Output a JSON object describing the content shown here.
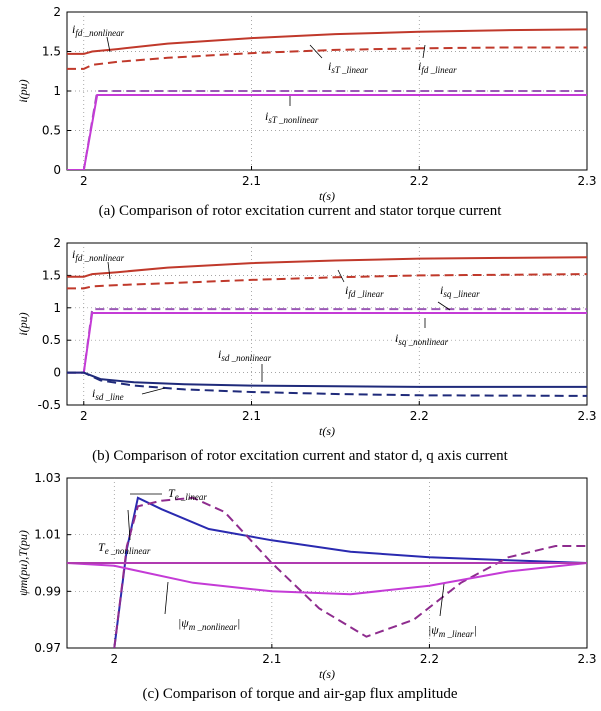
{
  "chart_data": [
    {
      "type": "line",
      "caption": "(a) Comparison of rotor excitation current and stator torque current",
      "xlabel": "t(s)",
      "ylabel": "i(pu)",
      "xlim": [
        1.99,
        2.3
      ],
      "ylim": [
        0,
        2
      ],
      "xticks": [
        "2",
        "2.1",
        "2.2",
        "2.3"
      ],
      "yticks": [
        "0",
        "0.5",
        "1",
        "1.5",
        "2"
      ],
      "grid": "dotted",
      "series": [
        {
          "name": "i_fd_nonlinear",
          "style": "solid",
          "color": "#c0392b",
          "points": [
            [
              1.99,
              1.47
            ],
            [
              2.0,
              1.47
            ],
            [
              2.005,
              1.5
            ],
            [
              2.02,
              1.53
            ],
            [
              2.05,
              1.6
            ],
            [
              2.1,
              1.67
            ],
            [
              2.15,
              1.72
            ],
            [
              2.2,
              1.75
            ],
            [
              2.25,
              1.77
            ],
            [
              2.3,
              1.78
            ]
          ]
        },
        {
          "name": "i_fd_linear",
          "style": "dashed",
          "color": "#c0392b",
          "points": [
            [
              1.99,
              1.28
            ],
            [
              2.0,
              1.28
            ],
            [
              2.005,
              1.33
            ],
            [
              2.02,
              1.37
            ],
            [
              2.05,
              1.42
            ],
            [
              2.1,
              1.48
            ],
            [
              2.15,
              1.52
            ],
            [
              2.2,
              1.54
            ],
            [
              2.25,
              1.55
            ],
            [
              2.3,
              1.55
            ]
          ]
        },
        {
          "name": "i_sT_linear",
          "style": "dashed",
          "color": "#9b59b6",
          "points": [
            [
              1.99,
              0.0
            ],
            [
              2.0,
              0.0
            ],
            [
              2.008,
              1.0
            ],
            [
              2.3,
              1.0
            ]
          ]
        },
        {
          "name": "i_sT_nonlinear",
          "style": "solid",
          "color": "#c43bd6",
          "points": [
            [
              1.99,
              0.0
            ],
            [
              2.0,
              0.0
            ],
            [
              2.008,
              0.95
            ],
            [
              2.3,
              0.95
            ]
          ]
        }
      ],
      "annotations": [
        {
          "main": "i",
          "sub": "fd _nonlinear"
        },
        {
          "main": "i",
          "sub": "sT _linear"
        },
        {
          "main": "i",
          "sub": "fd _linear"
        },
        {
          "main": "i",
          "sub": "sT _nonlinear"
        }
      ]
    },
    {
      "type": "line",
      "caption": "(b) Comparison of rotor excitation current and stator d, q axis current",
      "xlabel": "t(s)",
      "ylabel": "i(pu)",
      "xlim": [
        1.99,
        2.3
      ],
      "ylim": [
        -0.5,
        2
      ],
      "xticks": [
        "2",
        "2.1",
        "2.2",
        "2.3"
      ],
      "yticks": [
        "-0.5",
        "0",
        "0.5",
        "1",
        "1.5",
        "2"
      ],
      "grid": "dotted",
      "series": [
        {
          "name": "i_fd_nonlinear",
          "style": "solid",
          "color": "#c0392b",
          "points": [
            [
              1.99,
              1.48
            ],
            [
              2.0,
              1.48
            ],
            [
              2.005,
              1.52
            ],
            [
              2.02,
              1.55
            ],
            [
              2.05,
              1.62
            ],
            [
              2.1,
              1.69
            ],
            [
              2.15,
              1.73
            ],
            [
              2.2,
              1.76
            ],
            [
              2.25,
              1.77
            ],
            [
              2.3,
              1.78
            ]
          ]
        },
        {
          "name": "i_fd_linear",
          "style": "dashed",
          "color": "#c0392b",
          "points": [
            [
              1.99,
              1.3
            ],
            [
              2.0,
              1.3
            ],
            [
              2.005,
              1.33
            ],
            [
              2.02,
              1.35
            ],
            [
              2.05,
              1.38
            ],
            [
              2.1,
              1.43
            ],
            [
              2.15,
              1.47
            ],
            [
              2.2,
              1.5
            ],
            [
              2.25,
              1.51
            ],
            [
              2.3,
              1.52
            ]
          ]
        },
        {
          "name": "i_sq_linear",
          "style": "dashed",
          "color": "#9b59b6",
          "points": [
            [
              1.99,
              0.0
            ],
            [
              2.0,
              0.0
            ],
            [
              2.005,
              0.98
            ],
            [
              2.3,
              0.98
            ]
          ]
        },
        {
          "name": "i_sq_nonlinear",
          "style": "solid",
          "color": "#c43bd6",
          "points": [
            [
              1.99,
              0.0
            ],
            [
              2.0,
              0.0
            ],
            [
              2.005,
              0.92
            ],
            [
              2.3,
              0.92
            ]
          ]
        },
        {
          "name": "i_sd_nonlinear",
          "style": "solid",
          "color": "#1f2a7a",
          "points": [
            [
              1.99,
              0.0
            ],
            [
              2.0,
              0.0
            ],
            [
              2.01,
              -0.1
            ],
            [
              2.03,
              -0.15
            ],
            [
              2.06,
              -0.18
            ],
            [
              2.1,
              -0.2
            ],
            [
              2.15,
              -0.21
            ],
            [
              2.2,
              -0.22
            ],
            [
              2.3,
              -0.22
            ]
          ]
        },
        {
          "name": "i_sd_line",
          "style": "dashed",
          "color": "#1f2a7a",
          "points": [
            [
              1.99,
              0.0
            ],
            [
              2.0,
              0.0
            ],
            [
              2.01,
              -0.12
            ],
            [
              2.03,
              -0.2
            ],
            [
              2.06,
              -0.26
            ],
            [
              2.1,
              -0.3
            ],
            [
              2.15,
              -0.33
            ],
            [
              2.2,
              -0.35
            ],
            [
              2.3,
              -0.36
            ]
          ]
        }
      ],
      "annotations": [
        {
          "main": "i",
          "sub": "fd _nonlinear"
        },
        {
          "main": "i",
          "sub": "fd _linear"
        },
        {
          "main": "i",
          "sub": "sq _linear"
        },
        {
          "main": "i",
          "sub": "sq _nonlinear"
        },
        {
          "main": "i",
          "sub": "sd _nonlinear"
        },
        {
          "main": "i",
          "sub": "sd _line"
        }
      ]
    },
    {
      "type": "line",
      "caption": "(c) Comparison of torque and air-gap flux amplitude",
      "xlabel": "t(s)",
      "ylabel": "ψm(pu),T(pu)",
      "xlim": [
        1.97,
        2.3
      ],
      "ylim": [
        0.97,
        1.03
      ],
      "xticks": [
        "2",
        "2.1",
        "2.2",
        "2.3"
      ],
      "yticks": [
        "0.97",
        "0.99",
        "1.01",
        "1.03"
      ],
      "grid": "dotted",
      "series": [
        {
          "name": "T_e_nonlinear",
          "style": "solid",
          "color": "#2a2ab0",
          "points": [
            [
              2.0,
              0.97
            ],
            [
              2.008,
              1.005
            ],
            [
              2.015,
              1.023
            ],
            [
              2.03,
              1.019
            ],
            [
              2.06,
              1.012
            ],
            [
              2.1,
              1.008
            ],
            [
              2.15,
              1.004
            ],
            [
              2.2,
              1.002
            ],
            [
              2.25,
              1.001
            ],
            [
              2.3,
              1.0
            ]
          ]
        },
        {
          "name": "T_e_linear",
          "style": "dashed",
          "color": "#8e2c8e",
          "points": [
            [
              2.0,
              0.97
            ],
            [
              2.008,
              1.006
            ],
            [
              2.015,
              1.02
            ],
            [
              2.03,
              1.022
            ],
            [
              2.05,
              1.023
            ],
            [
              2.07,
              1.018
            ],
            [
              2.1,
              1.0
            ],
            [
              2.13,
              0.984
            ],
            [
              2.16,
              0.974
            ],
            [
              2.19,
              0.98
            ],
            [
              2.22,
              0.993
            ],
            [
              2.25,
              1.002
            ],
            [
              2.28,
              1.006
            ],
            [
              2.3,
              1.006
            ]
          ]
        },
        {
          "name": "|ψm_nonlinear|",
          "style": "solid",
          "color": "#c43bd6",
          "points": [
            [
              1.97,
              1.0
            ],
            [
              2.0,
              0.999
            ],
            [
              2.05,
              0.993
            ],
            [
              2.1,
              0.99
            ],
            [
              2.15,
              0.989
            ],
            [
              2.2,
              0.992
            ],
            [
              2.25,
              0.997
            ],
            [
              2.3,
              1.0
            ]
          ]
        },
        {
          "name": "|ψm_linear|",
          "style": "solid",
          "color": "#b03ab0",
          "points": [
            [
              1.97,
              1.0
            ],
            [
              2.3,
              1.0
            ]
          ]
        }
      ],
      "annotations": [
        {
          "main": "T",
          "sub": "e _linear"
        },
        {
          "main": "T",
          "sub": "e _nonlinear"
        },
        {
          "main": "|ψ",
          "sub": "m _nonlinear",
          "tail": "|"
        },
        {
          "main": "|ψ",
          "sub": "m _linear",
          "tail": "|"
        }
      ]
    }
  ]
}
